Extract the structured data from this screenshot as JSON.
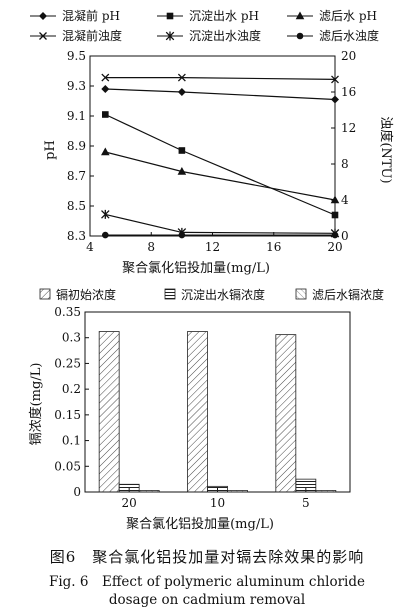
{
  "chart_data": [
    {
      "type": "line",
      "title": "",
      "xlabel": "聚合氯化铝投加量(mg/L)",
      "ylabel": "pH",
      "y2label": "浊度(NTU)",
      "xlim": [
        4,
        20
      ],
      "xticks": [
        4,
        8,
        12,
        16,
        20
      ],
      "ylim": [
        8.3,
        9.5
      ],
      "yticks": [
        "8.3",
        "8.5",
        "8.7",
        "8.9",
        "9.1",
        "9.3",
        "9.5"
      ],
      "y2lim": [
        0,
        20
      ],
      "y2ticks": [
        0,
        4,
        8,
        12,
        16,
        20
      ],
      "legend_position": "top",
      "x": [
        5,
        10,
        20
      ],
      "series": [
        {
          "name": "混凝前 pH",
          "axis": "left",
          "marker": "diamond",
          "values": [
            9.28,
            9.26,
            9.21
          ]
        },
        {
          "name": "沉淀出水 pH",
          "axis": "left",
          "marker": "square",
          "values": [
            9.11,
            8.87,
            8.44
          ]
        },
        {
          "name": "滤后水 pH",
          "axis": "left",
          "marker": "triangle",
          "values": [
            8.86,
            8.73,
            8.54
          ]
        },
        {
          "name": "混凝前浊度",
          "axis": "right",
          "marker": "x",
          "values": [
            17.6,
            17.6,
            17.4
          ]
        },
        {
          "name": "沉淀出水浊度",
          "axis": "right",
          "marker": "star",
          "values": [
            2.4,
            0.4,
            0.3
          ]
        },
        {
          "name": "滤后水浊度",
          "axis": "right",
          "marker": "circle",
          "values": [
            0.1,
            0.1,
            0.1
          ]
        }
      ]
    },
    {
      "type": "bar",
      "title": "",
      "xlabel": "聚合氯化铝投加量(mg/L)",
      "ylabel": "镉浓度(mg/L)",
      "ylim": [
        0,
        0.35
      ],
      "yticks": [
        "0",
        "0.05",
        "0.1",
        "0.15",
        "0.2",
        "0.25",
        "0.3",
        "0.35"
      ],
      "categories": [
        "20",
        "10",
        "5"
      ],
      "legend_position": "top",
      "series": [
        {
          "name": "镉初始浓度",
          "pattern": "diagonal",
          "values": [
            0.312,
            0.312,
            0.306
          ]
        },
        {
          "name": "沉淀出水镉浓度",
          "pattern": "horizontal",
          "values": [
            0.015,
            0.011,
            0.025
          ]
        },
        {
          "name": "滤后水镉浓度",
          "pattern": "diagonal-light",
          "values": [
            0.003,
            0.003,
            0.003
          ]
        }
      ]
    }
  ],
  "caption": {
    "zh": "图6　聚合氯化铝投加量对镉去除效果的影响",
    "en_line1": "Fig. 6　Effect of polymeric aluminum chloride",
    "en_line2": "dosage on cadmium removal"
  }
}
